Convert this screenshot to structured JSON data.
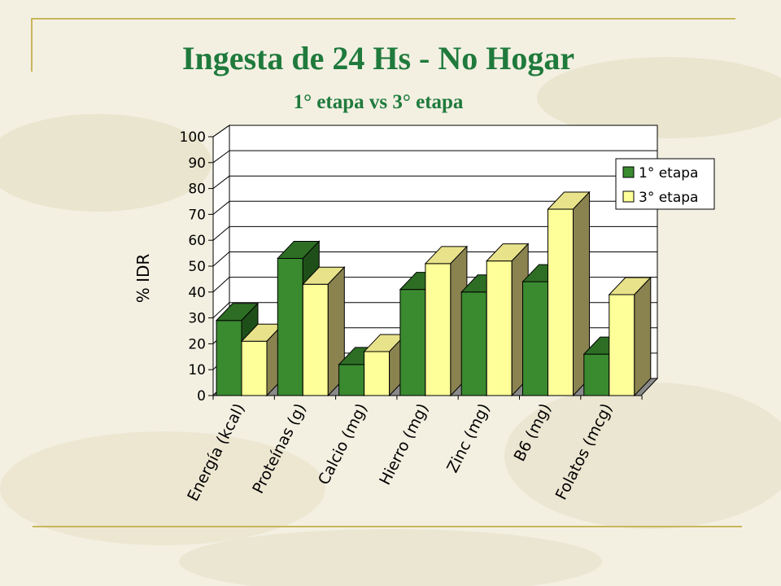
{
  "slide": {
    "title": "Ingesta de 24 Hs - No Hogar",
    "subtitle": "1° etapa vs 3° etapa"
  },
  "colors": {
    "title": "#1f7a3c",
    "rule": "#c9b65a",
    "series1_front": "#3a8a30",
    "series1_top": "#2d6e24",
    "series1_side": "#1f4f19",
    "series2_front": "#ffff99",
    "series2_top": "#e8e28a",
    "series2_side": "#8a8350",
    "wall": "#ffffff",
    "floor": "#8a8a8a"
  },
  "chart_data": {
    "type": "bar",
    "title": "",
    "xlabel": "",
    "ylabel": "% IDR",
    "ylim": [
      0,
      100
    ],
    "yticks": [
      "0",
      "10",
      "20",
      "30",
      "40",
      "50",
      "60",
      "70",
      "80",
      "90",
      "100"
    ],
    "grid": true,
    "legend_position": "right",
    "categories": [
      "Energía (kcal)",
      "Proteínas (g)",
      "Calcio (mg)",
      "Hierro (mg)",
      "Zinc (mg)",
      "B6 (mg)",
      "Folatos (mcg)"
    ],
    "series": [
      {
        "name": "1° etapa",
        "values": [
          29,
          53,
          12,
          41,
          40,
          44,
          16
        ]
      },
      {
        "name": "3° etapa",
        "values": [
          21,
          43,
          17,
          51,
          52,
          72,
          39
        ]
      }
    ]
  }
}
